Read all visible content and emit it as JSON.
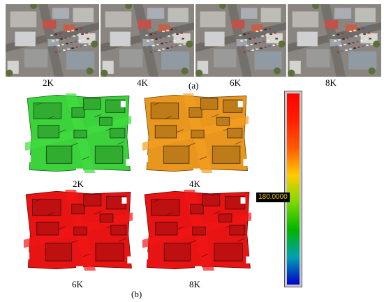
{
  "panel_a": {
    "label": "(a)",
    "photos": [
      {
        "resolution": "2K"
      },
      {
        "resolution": "4K"
      },
      {
        "resolution": "6K"
      },
      {
        "resolution": "8K"
      }
    ]
  },
  "panel_b": {
    "label": "(b)",
    "models": [
      {
        "resolution": "2K",
        "color": "#3cd23c"
      },
      {
        "resolution": "4K",
        "color": "#e8961e"
      },
      {
        "resolution": "6K",
        "color": "#e81414"
      },
      {
        "resolution": "8K",
        "color": "#e81414"
      }
    ]
  },
  "colorbar": {
    "readout": "180.0000",
    "gradient": [
      "#ff0000",
      "#ff2000",
      "#ff5a00",
      "#ffcc00",
      "#7cd800",
      "#00b400",
      "#00a0b4",
      "#0000c8"
    ]
  }
}
